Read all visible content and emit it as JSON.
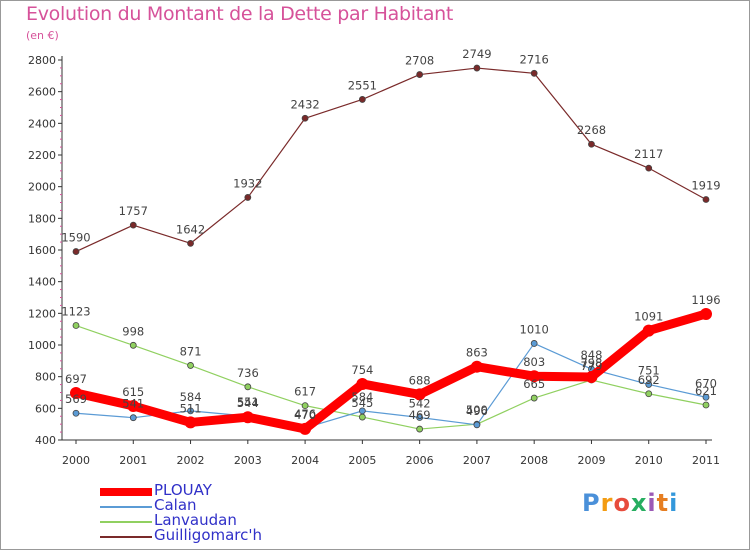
{
  "title": "Evolution du Montant de la Dette par Habitant",
  "subtitle": "(en €)",
  "logo": {
    "text": "Proxiti",
    "letters": [
      "P",
      "r",
      "o",
      "x",
      "i",
      "t",
      "i"
    ],
    "colors": [
      "#4a90d9",
      "#f39c12",
      "#e74c3c",
      "#27ae60",
      "#9b59b6",
      "#e67e22",
      "#3498db"
    ]
  },
  "chart_data": {
    "type": "line",
    "x": [
      "2000",
      "2001",
      "2002",
      "2003",
      "2004",
      "2005",
      "2006",
      "2007",
      "2008",
      "2009",
      "2010",
      "2011"
    ],
    "ylim": [
      400,
      2800
    ],
    "yticks": [
      "400",
      "600",
      "800",
      "1000",
      "1200",
      "1400",
      "1600",
      "1800",
      "2000",
      "2200",
      "2400",
      "2600",
      "2800"
    ],
    "grid": false,
    "legend_position": "bottom-left",
    "series": [
      {
        "name": "PLOUAY",
        "color": "#ff0000",
        "values": [
          697,
          615,
          511,
          544,
          470,
          754,
          688,
          863,
          803,
          798,
          1091,
          1196
        ],
        "labels": [
          "697",
          "615",
          "511",
          "544",
          "470",
          "754",
          "688",
          "863",
          "803",
          "798",
          "1091",
          "1196"
        ]
      },
      {
        "name": "Calan",
        "color": "#5b9bd5",
        "values": [
          569,
          541,
          584,
          551,
          476,
          584,
          542,
          496,
          1010,
          848,
          751,
          670
        ],
        "labels": [
          "569",
          "541",
          "584",
          "551",
          "476",
          "584",
          "542",
          "496",
          "1010",
          "848",
          "751",
          "670"
        ]
      },
      {
        "name": "Lanvaudan",
        "color": "#90d060",
        "values": [
          1123,
          998,
          871,
          736,
          617,
          545,
          469,
          500,
          665,
          779,
          692,
          621
        ],
        "labels": [
          "1123",
          "998",
          "871",
          "736",
          "617",
          "545",
          "469",
          "500",
          "665",
          "779",
          "692",
          "621"
        ]
      },
      {
        "name": "Guilligomarc'h",
        "color": "#7a2a2a",
        "values": [
          1590,
          1757,
          1642,
          1932,
          2432,
          2551,
          2708,
          2749,
          2716,
          2268,
          2117,
          1919
        ],
        "labels": [
          "1590",
          "1757",
          "1642",
          "1932",
          "2432",
          "2551",
          "2708",
          "2749",
          "2716",
          "2268",
          "2117",
          "1919"
        ]
      }
    ]
  }
}
